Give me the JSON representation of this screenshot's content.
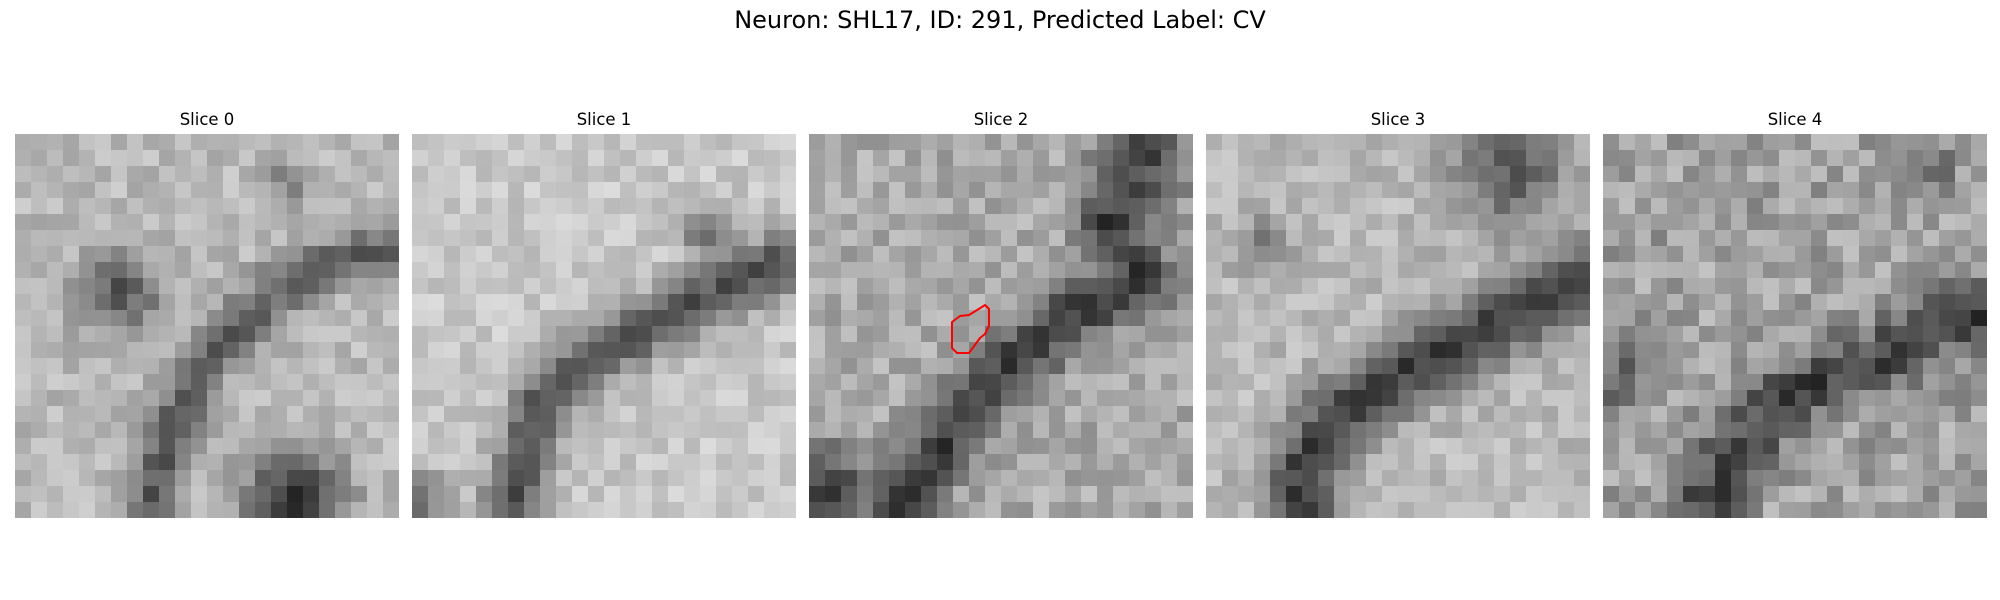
{
  "figure": {
    "title": "Neuron: SHL17, ID: 291, Predicted Label: CV"
  },
  "panels": [
    {
      "title": "Slice 0"
    },
    {
      "title": "Slice 1"
    },
    {
      "title": "Slice 2"
    },
    {
      "title": "Slice 3"
    },
    {
      "title": "Slice 4"
    }
  ],
  "annotation": {
    "slice_index": 2,
    "color": "#ff0000",
    "shape": "segmentation-contour"
  },
  "colors": {
    "contour": "#ff0000",
    "background": "#ffffff"
  }
}
